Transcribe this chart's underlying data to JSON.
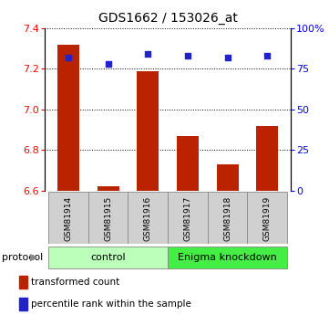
{
  "title": "GDS1662 / 153026_at",
  "samples": [
    "GSM81914",
    "GSM81915",
    "GSM81916",
    "GSM81917",
    "GSM81918",
    "GSM81919"
  ],
  "bar_values": [
    7.32,
    6.62,
    7.19,
    6.87,
    6.73,
    6.92
  ],
  "bar_base": 6.6,
  "percentile_values": [
    82,
    78,
    84,
    83,
    82,
    83
  ],
  "ylim_left": [
    6.6,
    7.4
  ],
  "ylim_right": [
    0,
    100
  ],
  "yticks_left": [
    6.6,
    6.8,
    7.0,
    7.2,
    7.4
  ],
  "yticks_right": [
    0,
    25,
    50,
    75,
    100
  ],
  "ytick_labels_right": [
    "0",
    "25",
    "50",
    "75",
    "100%"
  ],
  "bar_color": "#bb2200",
  "dot_color": "#2222cc",
  "group1_label": "control",
  "group2_label": "Enigma knockdown",
  "group1_indices": [
    0,
    1,
    2
  ],
  "group2_indices": [
    3,
    4,
    5
  ],
  "group1_color": "#bbffbb",
  "group2_color": "#44ee44",
  "protocol_label": "protocol",
  "legend_bar_label": "transformed count",
  "legend_dot_label": "percentile rank within the sample",
  "fig_width": 3.61,
  "fig_height": 3.45,
  "dpi": 100
}
